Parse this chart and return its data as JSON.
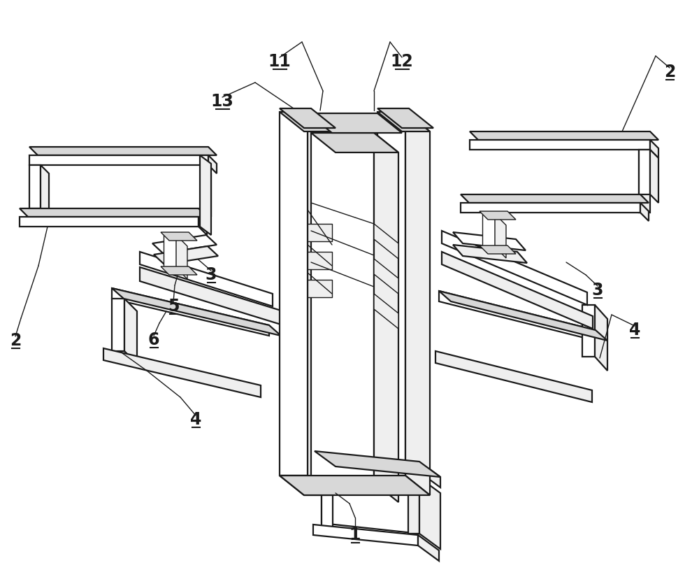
{
  "background_color": "#ffffff",
  "line_color": "#1a1a1a",
  "fill_white": "#ffffff",
  "fill_light": "#efefef",
  "fill_mid": "#d8d8d8",
  "fill_dark": "#c0c0c0",
  "lw_main": 1.6,
  "lw_thin": 1.0,
  "fig_width": 10.0,
  "fig_height": 8.05,
  "dpi": 100,
  "label_fontsize": 17
}
